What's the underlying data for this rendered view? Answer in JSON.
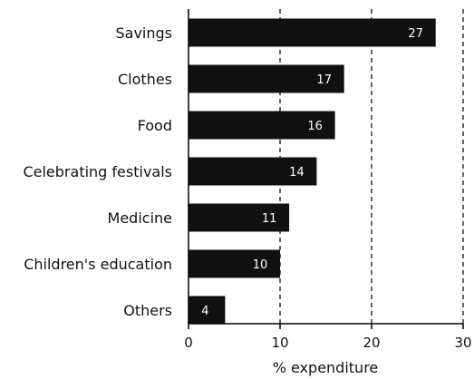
{
  "chart_data": {
    "type": "bar",
    "orientation": "horizontal",
    "categories": [
      "Savings",
      "Clothes",
      "Food",
      "Celebrating festivals",
      "Medicine",
      "Children's education",
      "Others"
    ],
    "values": [
      27,
      17,
      16,
      14,
      11,
      10,
      4
    ],
    "xlabel": "% expenditure",
    "ylabel": "",
    "xlim": [
      0,
      30
    ],
    "xticks": [
      "0",
      "10",
      "20",
      "30"
    ],
    "grid": "dashed vertical lines at 10, 20, 30",
    "bar_color": "#111111",
    "value_label_color": "#ffffff"
  }
}
